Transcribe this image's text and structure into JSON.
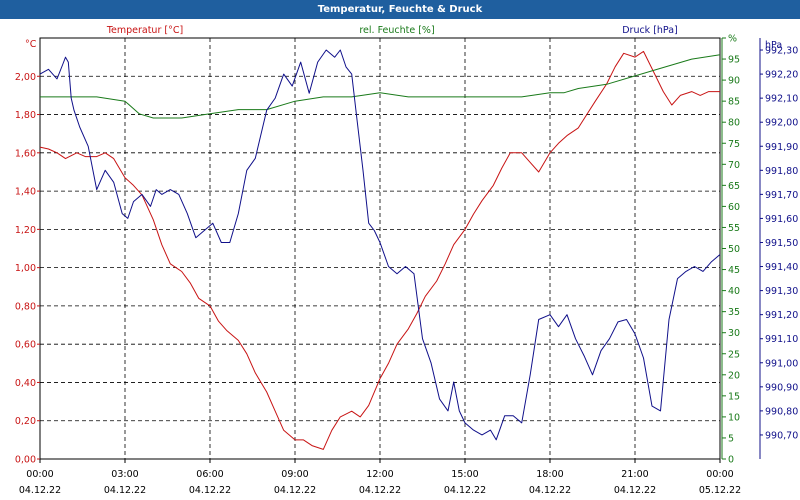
{
  "window": {
    "title": "Temperatur, Feuchte & Druck"
  },
  "colors": {
    "temperature": "#c81414",
    "humidity": "#1a7a1a",
    "pressure": "#10108a",
    "title_bg": "#1f5f9f"
  },
  "chart_data": {
    "type": "line",
    "title": "Temperatur, Feuchte & Druck",
    "grid": true,
    "x_ticks": [
      {
        "time": "00:00",
        "date": "04.12.22"
      },
      {
        "time": "03:00",
        "date": "04.12.22"
      },
      {
        "time": "06:00",
        "date": "04.12.22"
      },
      {
        "time": "09:00",
        "date": "04.12.22"
      },
      {
        "time": "12:00",
        "date": "04.12.22"
      },
      {
        "time": "15:00",
        "date": "04.12.22"
      },
      {
        "time": "18:00",
        "date": "04.12.22"
      },
      {
        "time": "21:00",
        "date": "04.12.22"
      },
      {
        "time": "00:00",
        "date": "05.12.22"
      }
    ],
    "x_range_hours": [
      0,
      24
    ],
    "axes": {
      "temperature": {
        "label": "Temperatur [°C]",
        "unit": "°C",
        "min": 0,
        "max": 2.2,
        "ticks": [
          "0,00",
          "0,20",
          "0,40",
          "0,60",
          "0,80",
          "1,00",
          "1,20",
          "1,40",
          "1,60",
          "1,80",
          "2,00"
        ]
      },
      "humidity": {
        "label": "rel. Feuchte [%]",
        "unit": "%",
        "min": 0,
        "max": 100,
        "ticks": [
          "0",
          "5",
          "10",
          "15",
          "20",
          "25",
          "30",
          "35",
          "40",
          "45",
          "50",
          "55",
          "60",
          "65",
          "70",
          "75",
          "80",
          "85",
          "90",
          "95",
          "%"
        ]
      },
      "pressure": {
        "label": "Druck [hPa]",
        "unit": "hPa",
        "min": 990.6,
        "max": 992.35,
        "ticks": [
          "990,70",
          "990,80",
          "990,90",
          "991,00",
          "991,10",
          "991,20",
          "991,30",
          "991,40",
          "991,50",
          "991,60",
          "991,70",
          "991,80",
          "991,90",
          "992,00",
          "992,10",
          "992,20",
          "992,30"
        ]
      }
    },
    "series": [
      {
        "name": "Temperatur [°C]",
        "axis": "temperature",
        "x": [
          0,
          0.3,
          0.6,
          0.9,
          1.3,
          1.6,
          2,
          2.3,
          2.6,
          3,
          3.3,
          3.6,
          4,
          4.3,
          4.6,
          5,
          5.3,
          5.6,
          6,
          6.3,
          6.6,
          7,
          7.3,
          7.6,
          8,
          8.3,
          8.6,
          9,
          9.3,
          9.6,
          10,
          10.3,
          10.6,
          11,
          11.3,
          11.6,
          12,
          12.3,
          12.6,
          13,
          13.3,
          13.6,
          14,
          14.3,
          14.6,
          15,
          15.3,
          15.6,
          16,
          16.3,
          16.6,
          17,
          17.3,
          17.6,
          18,
          18.3,
          18.6,
          19,
          19.3,
          19.6,
          20,
          20.3,
          20.6,
          21,
          21.3,
          21.6,
          22,
          22.3,
          22.6,
          23,
          23.3,
          23.6,
          24
        ],
        "values": [
          1.63,
          1.62,
          1.6,
          1.57,
          1.6,
          1.58,
          1.58,
          1.6,
          1.57,
          1.47,
          1.43,
          1.38,
          1.25,
          1.12,
          1.02,
          0.98,
          0.92,
          0.84,
          0.8,
          0.72,
          0.67,
          0.62,
          0.55,
          0.45,
          0.35,
          0.25,
          0.15,
          0.1,
          0.1,
          0.07,
          0.05,
          0.15,
          0.22,
          0.25,
          0.22,
          0.28,
          0.42,
          0.5,
          0.6,
          0.68,
          0.76,
          0.85,
          0.93,
          1.02,
          1.12,
          1.2,
          1.28,
          1.35,
          1.43,
          1.52,
          1.6,
          1.6,
          1.55,
          1.5,
          1.6,
          1.65,
          1.69,
          1.73,
          1.8,
          1.87,
          1.96,
          2.05,
          2.12,
          2.1,
          2.13,
          2.04,
          1.92,
          1.85,
          1.9,
          1.92,
          1.9,
          1.92,
          1.92
        ]
      },
      {
        "name": "rel. Feuchte [%]",
        "axis": "humidity",
        "x": [
          0,
          1,
          2,
          3,
          3.5,
          4,
          4.5,
          5,
          6,
          7,
          8,
          9,
          10,
          11,
          12,
          13,
          14,
          15,
          16,
          17,
          18,
          18.5,
          19,
          20,
          21,
          22,
          23,
          24
        ],
        "values": [
          86,
          86,
          86,
          85,
          82,
          81,
          81,
          81,
          82,
          83,
          83,
          85,
          86,
          86,
          87,
          86,
          86,
          86,
          86,
          86,
          87,
          87,
          88,
          89,
          91,
          93,
          95,
          96
        ]
      },
      {
        "name": "Druck [hPa]",
        "axis": "pressure",
        "x": [
          0,
          0.3,
          0.6,
          0.8,
          0.9,
          1.0,
          1.1,
          1.2,
          1.4,
          1.7,
          2,
          2.3,
          2.6,
          2.9,
          3.1,
          3.3,
          3.6,
          3.9,
          4.1,
          4.3,
          4.6,
          4.9,
          5.2,
          5.5,
          5.8,
          6.1,
          6.4,
          6.7,
          7.0,
          7.3,
          7.6,
          8.0,
          8.3,
          8.6,
          8.9,
          9.2,
          9.5,
          9.8,
          10.1,
          10.4,
          10.6,
          10.8,
          11.0,
          11.2,
          11.4,
          11.6,
          11.8,
          12.0,
          12.3,
          12.6,
          12.9,
          13.2,
          13.5,
          13.8,
          14.1,
          14.4,
          14.6,
          14.8,
          15,
          15.3,
          15.6,
          15.9,
          16.1,
          16.4,
          16.7,
          17,
          17.3,
          17.6,
          18,
          18.3,
          18.6,
          18.9,
          19.2,
          19.5,
          19.8,
          20.1,
          20.4,
          20.7,
          21,
          21.3,
          21.6,
          21.9,
          22.2,
          22.5,
          22.8,
          23.1,
          23.4,
          23.7,
          24
        ],
        "values": [
          992.2,
          992.22,
          992.18,
          992.24,
          992.27,
          992.25,
          992.1,
          992.05,
          991.98,
          991.9,
          991.72,
          991.8,
          991.75,
          991.62,
          991.6,
          991.67,
          991.7,
          991.65,
          991.72,
          991.7,
          991.72,
          991.7,
          991.62,
          991.52,
          991.55,
          991.58,
          991.5,
          991.5,
          991.62,
          991.8,
          991.85,
          992.05,
          992.1,
          992.2,
          992.15,
          992.25,
          992.12,
          992.25,
          992.3,
          992.27,
          992.3,
          992.23,
          992.2,
          992.0,
          991.8,
          991.58,
          991.55,
          991.5,
          991.4,
          991.37,
          991.4,
          991.37,
          991.1,
          991.0,
          990.85,
          990.8,
          990.92,
          990.8,
          990.75,
          990.72,
          990.7,
          990.72,
          990.68,
          990.78,
          990.78,
          990.75,
          990.95,
          991.18,
          991.2,
          991.15,
          991.2,
          991.1,
          991.03,
          990.95,
          991.05,
          991.1,
          991.17,
          991.18,
          991.12,
          991.02,
          990.82,
          990.8,
          991.18,
          991.35,
          991.38,
          991.4,
          991.38,
          991.42,
          991.45
        ]
      }
    ]
  }
}
